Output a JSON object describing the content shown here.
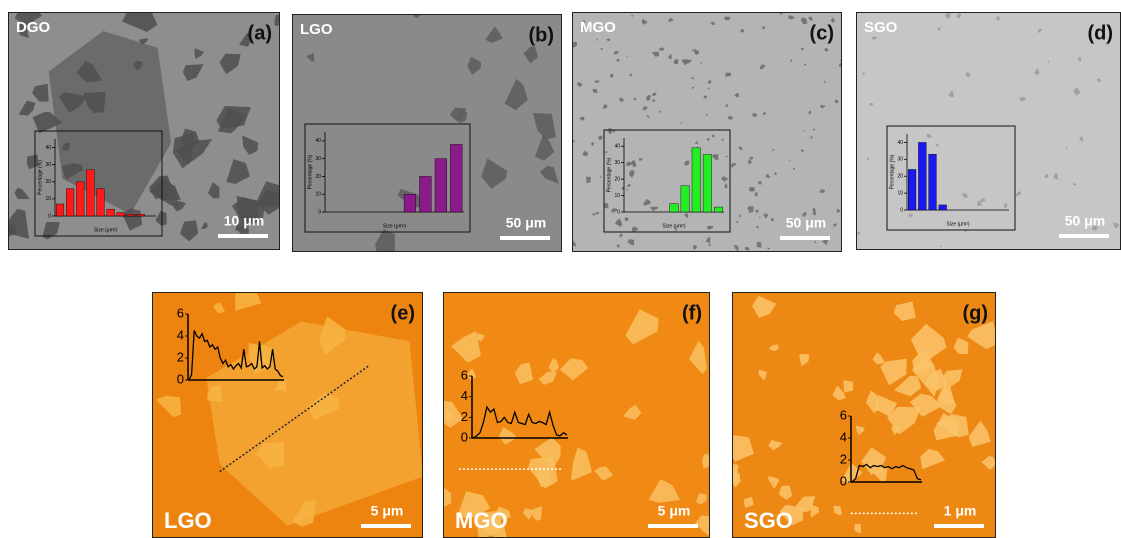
{
  "panels": [
    {
      "id": "(a)",
      "name": "DGO",
      "scale_bar": "10 μm",
      "inset": {
        "type": "bar",
        "color": "#ff1a1a",
        "values": [
          7,
          16,
          20,
          27,
          16,
          4,
          2,
          1,
          1,
          0
        ],
        "ylim": [
          0,
          45
        ],
        "yticks": [
          0,
          10,
          20,
          30,
          40
        ],
        "ylabel": "Percentage (%)",
        "xlabel": "Size (μm²)"
      }
    },
    {
      "id": "(b)",
      "name": "LGO",
      "scale_bar": "50 μm",
      "inset": {
        "type": "bar",
        "color": "#8b1a8b",
        "values": [
          0,
          0,
          0,
          0,
          0,
          10,
          20,
          30,
          38
        ],
        "ylim": [
          0,
          45
        ],
        "yticks": [
          0,
          10,
          20,
          30,
          40
        ],
        "ylabel": "Percentage (%)",
        "xlabel": "Size (μm²)"
      }
    },
    {
      "id": "(c)",
      "name": "MGO",
      "scale_bar": "50 μm",
      "inset": {
        "type": "bar",
        "color": "#22ee22",
        "values": [
          0,
          0,
          0,
          0,
          5,
          16,
          39,
          35,
          3
        ],
        "ylim": [
          0,
          45
        ],
        "yticks": [
          0,
          10,
          20,
          30,
          40
        ],
        "ylabel": "Percentage (%)",
        "xlabel": "Size (μm²)"
      }
    },
    {
      "id": "(d)",
      "name": "SGO",
      "scale_bar": "50 μm",
      "inset": {
        "type": "bar",
        "color": "#1a1aee",
        "values": [
          24,
          40,
          33,
          3,
          0,
          0,
          0,
          0,
          0,
          0
        ],
        "ylim": [
          0,
          45
        ],
        "yticks": [
          0,
          10,
          20,
          30,
          40
        ],
        "ylabel": "Percentage (%)",
        "xlabel": "Size (μm²)"
      }
    },
    {
      "id": "(e)",
      "name": "LGO",
      "scale_bar": "5 μm",
      "inset": {
        "type": "line",
        "color": "#000000",
        "values": [
          0,
          0.5,
          4.5,
          4,
          3.8,
          4.2,
          3.5,
          3.6,
          3,
          3.2,
          2.8,
          3,
          2,
          1.5,
          1.8,
          1.2,
          1.4,
          1,
          1.3,
          1.5,
          1.1,
          2.8,
          1.2,
          1.3,
          1.5,
          1,
          1.2,
          3.5,
          1.1,
          1.3,
          1,
          1.2,
          2.8,
          1,
          0.8,
          0.4,
          0.3
        ],
        "ylim": [
          0,
          6
        ],
        "yticks": [
          0,
          2,
          4,
          6
        ]
      }
    },
    {
      "id": "(f)",
      "name": "MGO",
      "scale_bar": "5 μm",
      "inset": {
        "type": "line",
        "color": "#000000",
        "values": [
          0,
          0.2,
          0.5,
          1.5,
          3,
          2.5,
          2.8,
          1.5,
          1.6,
          2,
          1.5,
          1.4,
          2.5,
          1.5,
          1.4,
          1.3,
          2.3,
          1.5,
          1.4,
          1.6,
          1.5,
          1.3,
          2.5,
          1.2,
          0.3,
          0.2,
          0.5,
          0.3
        ],
        "ylim": [
          0,
          6
        ],
        "yticks": [
          0,
          2,
          4,
          6
        ]
      }
    },
    {
      "id": "(g)",
      "name": "SGO",
      "scale_bar": "1 μm",
      "inset": {
        "type": "line",
        "color": "#000000",
        "values": [
          0,
          0.3,
          1.5,
          1.4,
          1.6,
          1.3,
          1.5,
          1.4,
          1.5,
          1.3,
          1.4,
          1.2,
          1.4,
          1.3,
          1.5,
          1.3,
          1.2,
          1.1,
          0.3,
          0.2
        ],
        "ylim": [
          0,
          6
        ],
        "yticks": [
          0,
          2,
          4,
          6
        ]
      }
    }
  ]
}
